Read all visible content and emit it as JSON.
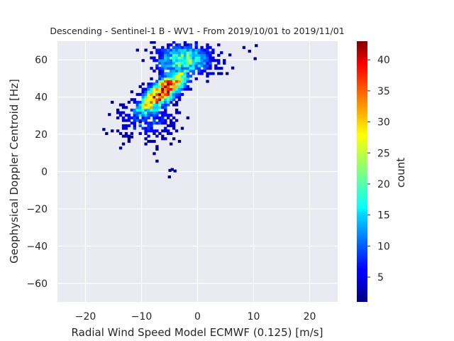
{
  "chart_data": {
    "type": "heatmap",
    "title": "Descending - Sentinel-1 B - WV1 - From 2019/10/01 to 2019/11/01",
    "xlabel": "Radial Wind Speed Model ECMWF (0.125) [m/s]",
    "ylabel": "Geophysical Doppler Centroid [Hz]",
    "xlim": [
      -25,
      25
    ],
    "ylim": [
      -70,
      70
    ],
    "xticks": [
      -20,
      -10,
      0,
      10,
      20
    ],
    "xtick_labels": [
      "−20",
      "−10",
      "0",
      "10",
      "20"
    ],
    "yticks": [
      -60,
      -40,
      -20,
      0,
      20,
      40,
      60
    ],
    "ytick_labels": [
      "−60",
      "−40",
      "−20",
      "0",
      "20",
      "40",
      "60"
    ],
    "grid": true,
    "colormap": "jet",
    "colorbar": {
      "label": "count",
      "min": 1,
      "max": 43,
      "ticks": [
        5,
        10,
        15,
        20,
        25,
        30,
        35,
        40
      ],
      "tick_labels": [
        "5",
        "10",
        "15",
        "20",
        "25",
        "30",
        "35",
        "40"
      ]
    },
    "bin_size": {
      "x": 0.5,
      "y": 1.4
    },
    "core": {
      "x": -6,
      "y": 42,
      "peak_count": 43
    },
    "distribution_note_points": [
      {
        "x": -6.5,
        "y": 42,
        "count": 43
      },
      {
        "x": -5.5,
        "y": 48,
        "count": 38
      },
      {
        "x": -3.5,
        "y": 56,
        "count": 30
      },
      {
        "x": -8,
        "y": 34,
        "count": 22
      },
      {
        "x": -2,
        "y": 62,
        "count": 20
      },
      {
        "x": 2,
        "y": 62,
        "count": 8
      },
      {
        "x": -12,
        "y": 25,
        "count": 4
      },
      {
        "x": -5,
        "y": -2,
        "count": 1
      },
      {
        "x": 10,
        "y": 60,
        "count": 1
      }
    ]
  },
  "colors": {
    "axes_background": "#EAEAF2",
    "grid": "#FFFFFF",
    "text": "#262626"
  }
}
